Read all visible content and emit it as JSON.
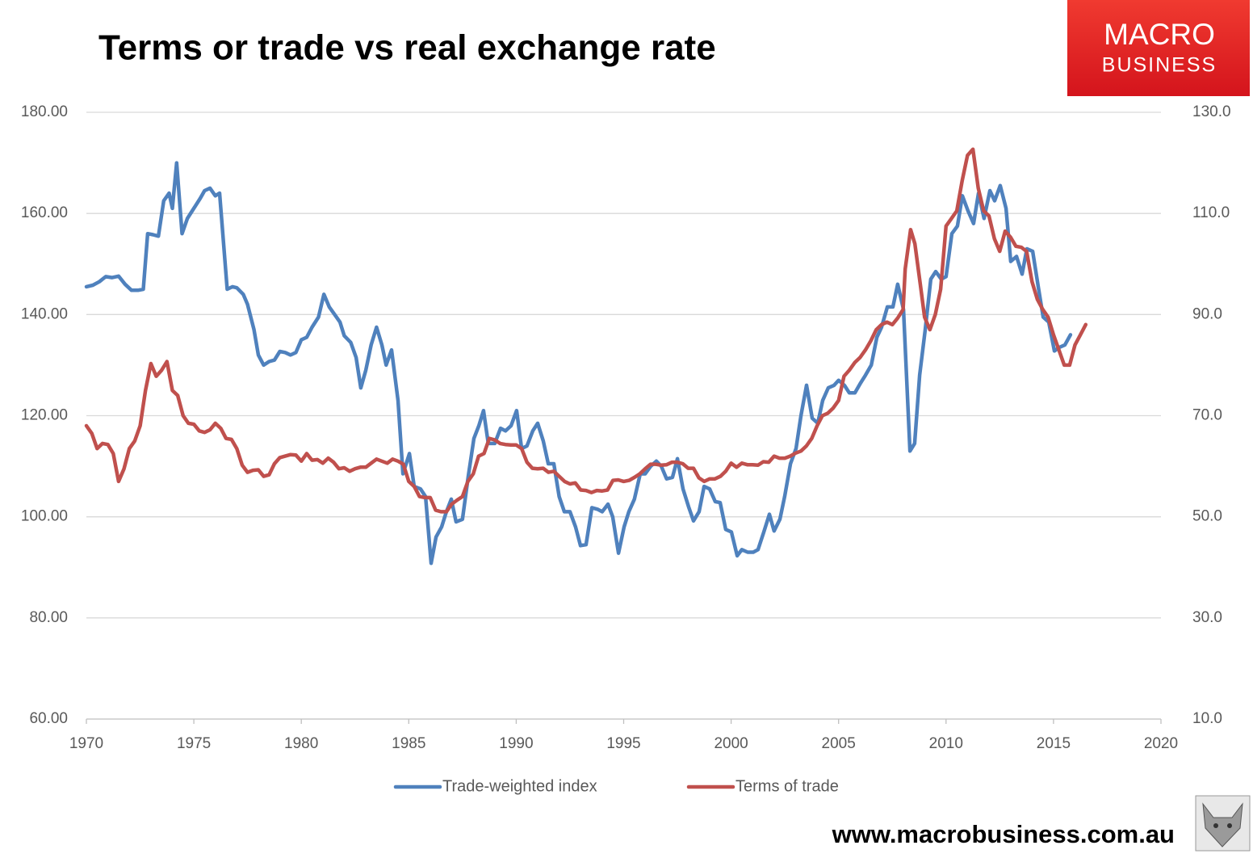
{
  "chart_data": {
    "type": "line",
    "title": "Terms or trade vs real exchange rate",
    "logo": {
      "line1": "MACRO",
      "line2": "BUSINESS"
    },
    "footer": "www.macrobusiness.com.au",
    "xlim": [
      1970,
      2020
    ],
    "xticks": [
      1970,
      1975,
      1980,
      1985,
      1990,
      1995,
      2000,
      2005,
      2010,
      2015,
      2020
    ],
    "ylim": [
      60,
      180
    ],
    "yticks": [
      {
        "value": 60,
        "label": "60.00"
      },
      {
        "value": 80,
        "label": "80.00"
      },
      {
        "value": 100,
        "label": "100.00"
      },
      {
        "value": 120,
        "label": "120.00"
      },
      {
        "value": 140,
        "label": "140.00"
      },
      {
        "value": 160,
        "label": "160.00"
      },
      {
        "value": 180,
        "label": "180.00"
      }
    ],
    "y2lim": [
      10,
      130
    ],
    "y2ticks": [
      {
        "value": 10,
        "label": "10.0"
      },
      {
        "value": 30,
        "label": "30.0"
      },
      {
        "value": 50,
        "label": "50.0"
      },
      {
        "value": 70,
        "label": "70.0"
      },
      {
        "value": 90,
        "label": "90.0"
      },
      {
        "value": 110,
        "label": "110.0"
      },
      {
        "value": 130,
        "label": "130.0"
      }
    ],
    "grid": true,
    "legend": "bottom",
    "series": [
      {
        "name": "Trade-weighted index",
        "color": "#4f81bd",
        "axis": "y",
        "x": [
          1970.0,
          1970.3,
          1970.6,
          1970.9,
          1971.2,
          1971.5,
          1971.8,
          1972.1,
          1972.4,
          1972.65,
          1972.85,
          1973.1,
          1973.35,
          1973.6,
          1973.85,
          1974.0,
          1974.2,
          1974.45,
          1974.7,
          1975.0,
          1975.3,
          1975.5,
          1975.75,
          1976.0,
          1976.2,
          1976.55,
          1976.8,
          1977.0,
          1977.3,
          1977.5,
          1977.8,
          1978.0,
          1978.25,
          1978.5,
          1978.75,
          1979.0,
          1979.25,
          1979.5,
          1979.75,
          1980.0,
          1980.25,
          1980.5,
          1980.8,
          1981.05,
          1981.3,
          1981.55,
          1981.8,
          1982.0,
          1982.3,
          1982.55,
          1982.77,
          1983.0,
          1983.25,
          1983.5,
          1983.75,
          1983.95,
          1984.2,
          1984.5,
          1984.73,
          1985.03,
          1985.25,
          1985.55,
          1985.78,
          1986.04,
          1986.27,
          1986.53,
          1986.75,
          1986.98,
          1987.2,
          1987.5,
          1987.77,
          1988.03,
          1988.26,
          1988.48,
          1988.7,
          1989.0,
          1989.27,
          1989.5,
          1989.76,
          1990.02,
          1990.25,
          1990.5,
          1990.77,
          1991.0,
          1991.26,
          1991.49,
          1991.75,
          1992.0,
          1992.24,
          1992.5,
          1992.76,
          1992.99,
          1993.25,
          1993.52,
          1993.78,
          1994.0,
          1994.27,
          1994.49,
          1994.76,
          1995.02,
          1995.24,
          1995.5,
          1995.77,
          1996.0,
          1996.26,
          1996.52,
          1996.75,
          1997.0,
          1997.27,
          1997.5,
          1997.76,
          1998.02,
          1998.25,
          1998.51,
          1998.74,
          1999.0,
          1999.26,
          1999.49,
          1999.75,
          2000.01,
          2000.28,
          2000.5,
          2000.77,
          2001.03,
          2001.25,
          2001.52,
          2001.78,
          2002.0,
          2002.27,
          2002.49,
          2002.76,
          2003.02,
          2003.25,
          2003.51,
          2003.77,
          2004.03,
          2004.26,
          2004.52,
          2004.79,
          2005.0,
          2005.27,
          2005.5,
          2005.76,
          2006.03,
          2006.25,
          2006.52,
          2006.78,
          2007.0,
          2007.27,
          2007.53,
          2007.75,
          2008.02,
          2008.32,
          2008.54,
          2008.77,
          2009.03,
          2009.29,
          2009.52,
          2009.78,
          2010.0,
          2010.27,
          2010.53,
          2010.76,
          2011.02,
          2011.28,
          2011.51,
          2011.77,
          2012.04,
          2012.26,
          2012.52,
          2012.79,
          2013.01,
          2013.28,
          2013.54,
          2013.76,
          2014.03,
          2014.29,
          2014.52,
          2014.78,
          2015.04,
          2015.27,
          2015.53,
          2015.79
        ],
        "values": [
          145.5,
          145.8,
          146.5,
          147.5,
          147.3,
          147.6,
          146,
          144.8,
          144.8,
          145,
          156,
          155.8,
          155.5,
          162.5,
          164,
          161,
          170,
          156,
          159,
          161,
          163,
          164.5,
          165,
          163.5,
          164,
          145,
          145.5,
          145.3,
          144,
          142,
          137,
          132,
          130,
          130.7,
          131,
          132.7,
          132.5,
          132,
          132.5,
          135,
          135.5,
          137.5,
          139.5,
          144,
          141.5,
          140,
          138.5,
          135.8,
          134.5,
          131.5,
          125.5,
          129,
          134,
          137.5,
          134,
          130,
          133,
          123,
          108.5,
          112.5,
          106,
          105.5,
          104,
          90.8,
          96,
          98,
          101,
          103.5,
          99,
          99.5,
          108,
          115.5,
          118,
          121,
          114.5,
          114.5,
          117.5,
          117,
          118,
          121,
          113.5,
          114,
          117,
          118.5,
          115,
          110.5,
          110.5,
          104,
          101,
          101,
          98,
          94.3,
          94.5,
          101.8,
          101.5,
          101,
          102.5,
          100,
          92.8,
          98,
          101,
          103.5,
          108.5,
          108.5,
          110,
          111,
          110,
          107.5,
          107.8,
          111.5,
          105.5,
          102,
          99.2,
          101,
          106,
          105.5,
          103,
          102.8,
          97.5,
          97,
          92.3,
          93.5,
          93,
          93,
          93.5,
          97,
          100.5,
          97.2,
          99.5,
          104,
          110.5,
          113.5,
          120,
          126,
          119.5,
          118.5,
          123,
          125.5,
          126,
          127,
          126,
          124.5,
          124.5,
          126.5,
          128,
          130,
          135.5,
          137.5,
          141.5,
          141.5,
          146,
          141,
          113,
          114.5,
          128,
          137,
          147,
          148.5,
          147,
          147.5,
          156,
          157.5,
          163.5,
          160.5,
          158,
          164,
          159,
          164.5,
          162.5,
          165.5,
          161,
          150.5,
          151.5,
          148,
          153,
          152.5,
          145.5,
          139.5,
          138.5,
          132.8,
          133.5,
          134,
          136
        ]
      },
      {
        "name": "Terms of trade",
        "color": "#c0504d",
        "axis": "y2",
        "x": [
          1970.0,
          1970.25,
          1970.5,
          1970.75,
          1971.0,
          1971.25,
          1971.5,
          1971.75,
          1972.0,
          1972.25,
          1972.5,
          1972.75,
          1973.0,
          1973.25,
          1973.5,
          1973.75,
          1974.0,
          1974.25,
          1974.5,
          1974.75,
          1975.0,
          1975.25,
          1975.5,
          1975.75,
          1976.0,
          1976.25,
          1976.5,
          1976.75,
          1977.0,
          1977.25,
          1977.5,
          1977.75,
          1978.0,
          1978.25,
          1978.5,
          1978.75,
          1979.0,
          1979.25,
          1979.5,
          1979.75,
          1980.0,
          1980.25,
          1980.5,
          1980.75,
          1981.0,
          1981.25,
          1981.5,
          1981.75,
          1982.0,
          1982.25,
          1982.5,
          1982.75,
          1983.0,
          1983.25,
          1983.5,
          1983.75,
          1984.0,
          1984.25,
          1984.5,
          1984.75,
          1985.0,
          1985.25,
          1985.5,
          1985.75,
          1986.0,
          1986.25,
          1986.5,
          1986.75,
          1987.0,
          1987.25,
          1987.5,
          1987.75,
          1988.0,
          1988.25,
          1988.5,
          1988.75,
          1989.0,
          1989.25,
          1989.5,
          1989.75,
          1990.0,
          1990.25,
          1990.5,
          1990.75,
          1991.0,
          1991.25,
          1991.5,
          1991.75,
          1992.0,
          1992.25,
          1992.5,
          1992.75,
          1993.0,
          1993.25,
          1993.5,
          1993.75,
          1994.0,
          1994.25,
          1994.5,
          1994.75,
          1995.0,
          1995.25,
          1995.5,
          1995.75,
          1996.0,
          1996.25,
          1996.5,
          1996.75,
          1997.0,
          1997.25,
          1997.5,
          1997.75,
          1998.0,
          1998.25,
          1998.5,
          1998.75,
          1999.0,
          1999.25,
          1999.5,
          1999.75,
          2000.0,
          2000.25,
          2000.5,
          2000.75,
          2001.0,
          2001.25,
          2001.5,
          2001.75,
          2002.0,
          2002.25,
          2002.5,
          2002.75,
          2003.0,
          2003.25,
          2003.5,
          2003.75,
          2004.0,
          2004.25,
          2004.5,
          2004.75,
          2005.0,
          2005.25,
          2005.5,
          2005.75,
          2006.0,
          2006.25,
          2006.5,
          2006.75,
          2007.0,
          2007.25,
          2007.5,
          2007.75,
          2008.0,
          2008.1,
          2008.35,
          2008.55,
          2008.8,
          2009.0,
          2009.25,
          2009.5,
          2009.75,
          2010.0,
          2010.25,
          2010.5,
          2010.75,
          2011.0,
          2011.25,
          2011.5,
          2011.75,
          2012.0,
          2012.25,
          2012.5,
          2012.75,
          2013.0,
          2013.25,
          2013.5,
          2013.75,
          2014.0,
          2014.25,
          2014.5,
          2014.75,
          2015.0,
          2015.25,
          2015.5,
          2015.75,
          2016.0,
          2016.25,
          2016.5
        ],
        "values": [
          68,
          66.5,
          63.5,
          64.5,
          64.3,
          62.5,
          57,
          59.5,
          63.5,
          65,
          68,
          75,
          80.3,
          77.8,
          79,
          80.7,
          75,
          74,
          70,
          68.5,
          68.3,
          67,
          66.7,
          67.2,
          68.5,
          67.5,
          65.5,
          65.3,
          63.5,
          60.2,
          58.8,
          59.2,
          59.3,
          58,
          58.3,
          60.5,
          61.7,
          62,
          62.3,
          62.2,
          61,
          62.5,
          61.2,
          61.3,
          60.6,
          61.6,
          60.8,
          59.5,
          59.7,
          59,
          59.5,
          59.8,
          59.8,
          60.6,
          61.4,
          61,
          60.6,
          61.4,
          61,
          60.4,
          57,
          56,
          54,
          53.8,
          53.8,
          51.3,
          51,
          51,
          52.5,
          53.3,
          54,
          57,
          58.5,
          62,
          62.5,
          65.5,
          65.2,
          64.5,
          64.3,
          64.2,
          64.2,
          63.5,
          60.8,
          59.6,
          59.5,
          59.6,
          58.8,
          59,
          58,
          57,
          56.5,
          56.7,
          55.3,
          55.2,
          54.8,
          55.2,
          55.1,
          55.3,
          57.2,
          57.3,
          57,
          57.2,
          57.8,
          58.5,
          59.5,
          60.4,
          60.4,
          60.2,
          60.3,
          60.8,
          60.8,
          60.5,
          59.6,
          59.6,
          57.7,
          57,
          57.5,
          57.5,
          58,
          59,
          60.6,
          59.8,
          60.6,
          60.3,
          60.3,
          60.2,
          60.9,
          60.8,
          62,
          61.6,
          61.6,
          62,
          62.6,
          63,
          64,
          65.5,
          68,
          70,
          70.5,
          71.5,
          73,
          77.8,
          79,
          80.5,
          81.5,
          83,
          84.8,
          87,
          88,
          88.5,
          88,
          89.3,
          91,
          99,
          106.8,
          104,
          96,
          89.5,
          87,
          90,
          95,
          107.5,
          109,
          110.5,
          116.5,
          121.5,
          122.7,
          115,
          110.5,
          109.5,
          105,
          102.5,
          106.5,
          105.3,
          103.5,
          103.3,
          102.5,
          96.5,
          93,
          91,
          89.5,
          86,
          83,
          80,
          80,
          84,
          86,
          88
        ]
      }
    ]
  }
}
